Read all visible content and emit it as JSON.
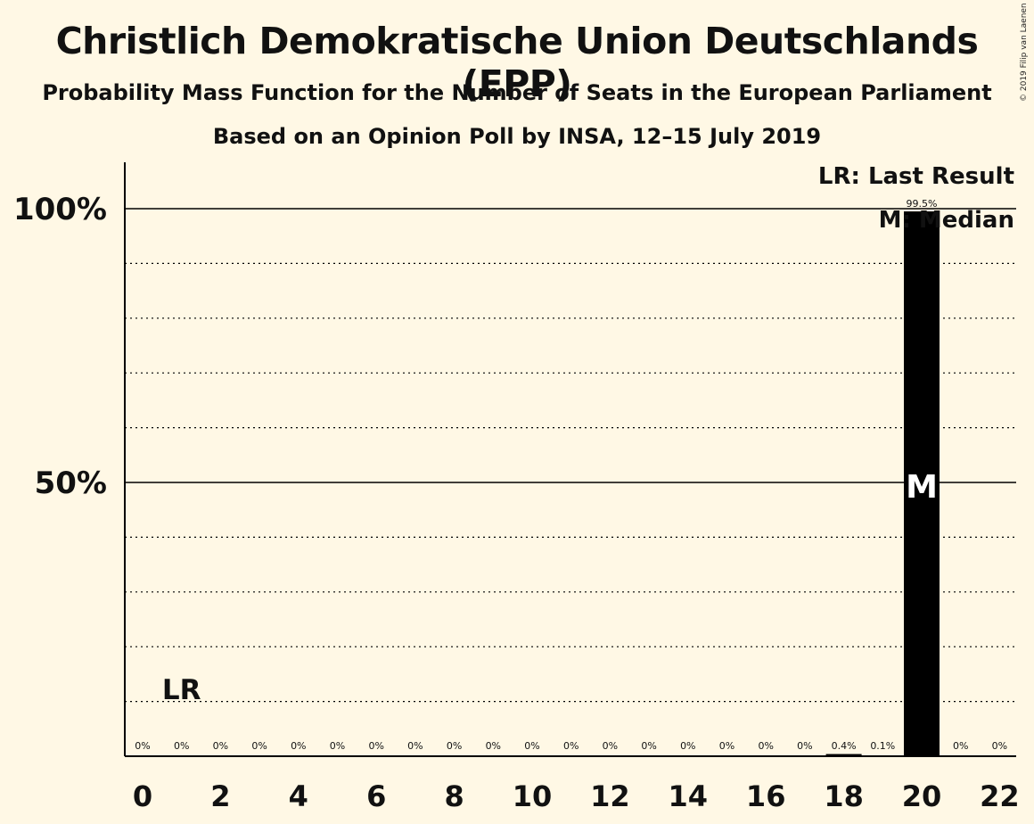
{
  "title": "Christlich Demokratische Union Deutschlands (EPP)",
  "subtitle": "Probability Mass Function for the Number of Seats in the European Parliament",
  "poll_line": "Based on an Opinion Poll by INSA, 12–15 July 2019",
  "copyright": "© 2019 Filip van Laenen",
  "legend": {
    "last_result": "LR: Last Result",
    "median": "M: Median"
  },
  "markers": {
    "last_result_label": "LR",
    "median_label": "M"
  },
  "colors": {
    "background": "#fff8e5",
    "bar": "#000000",
    "text": "#111111"
  },
  "chart_data": {
    "type": "bar",
    "categories": [
      0,
      1,
      2,
      3,
      4,
      5,
      6,
      7,
      8,
      9,
      10,
      11,
      12,
      13,
      14,
      15,
      16,
      17,
      18,
      19,
      20,
      21,
      22
    ],
    "values": [
      0,
      0,
      0,
      0,
      0,
      0,
      0,
      0,
      0,
      0,
      0,
      0,
      0,
      0,
      0,
      0,
      0,
      0,
      0.4,
      0.1,
      99.5,
      0,
      0
    ],
    "data_labels": [
      "0%",
      "0%",
      "0%",
      "0%",
      "0%",
      "0%",
      "0%",
      "0%",
      "0%",
      "0%",
      "0%",
      "0%",
      "0%",
      "0%",
      "0%",
      "0%",
      "0%",
      "0%",
      "0.4%",
      "0.1%",
      "99.5%",
      "0%",
      "0%"
    ],
    "x_ticks": [
      0,
      2,
      4,
      6,
      8,
      10,
      12,
      14,
      16,
      18,
      20,
      22
    ],
    "y_ticks": [
      "50%",
      "100%"
    ],
    "ylim": [
      0,
      100
    ],
    "last_result_seat": 1,
    "median_seat": 20,
    "grid": true,
    "legend_position": "top-right"
  }
}
